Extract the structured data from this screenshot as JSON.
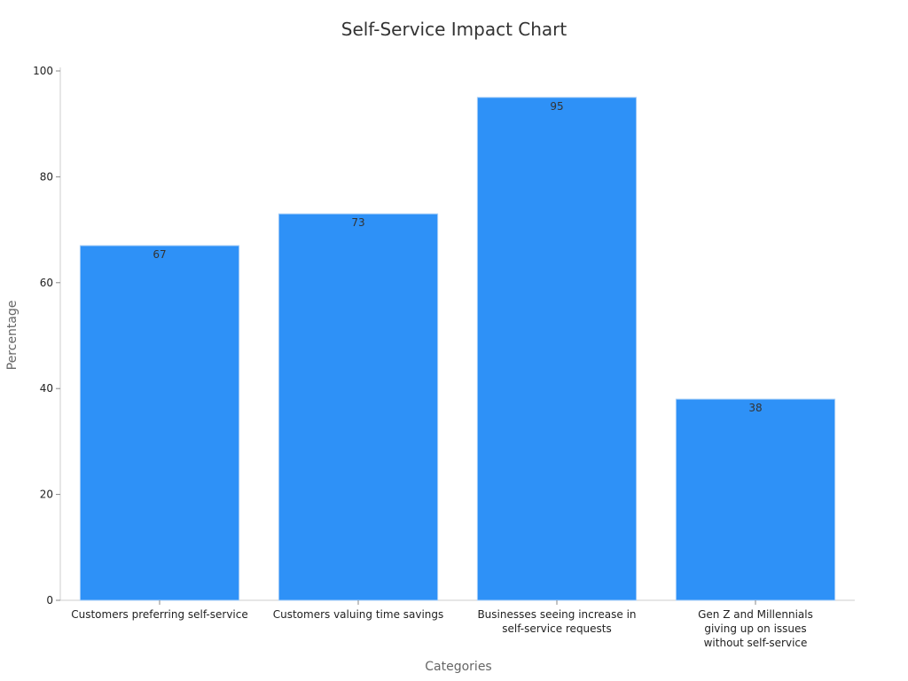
{
  "chart_data": {
    "type": "bar",
    "title": "Self-Service Impact Chart",
    "xlabel": "Categories",
    "ylabel": "Percentage",
    "categories": [
      [
        "Customers preferring self-service"
      ],
      [
        "Customers valuing time savings"
      ],
      [
        "Businesses seeing increase in",
        "self-service requests"
      ],
      [
        "Gen Z and Millennials",
        "giving up on issues",
        "without self-service"
      ]
    ],
    "values": [
      67,
      73,
      95,
      38
    ],
    "ylim": [
      0,
      100
    ],
    "yticks": [
      0,
      20,
      40,
      60,
      80,
      100
    ],
    "grid": false,
    "legend": "none",
    "bar_color": "#2E91F7",
    "bar_edge_color": "#A9CFF7"
  }
}
